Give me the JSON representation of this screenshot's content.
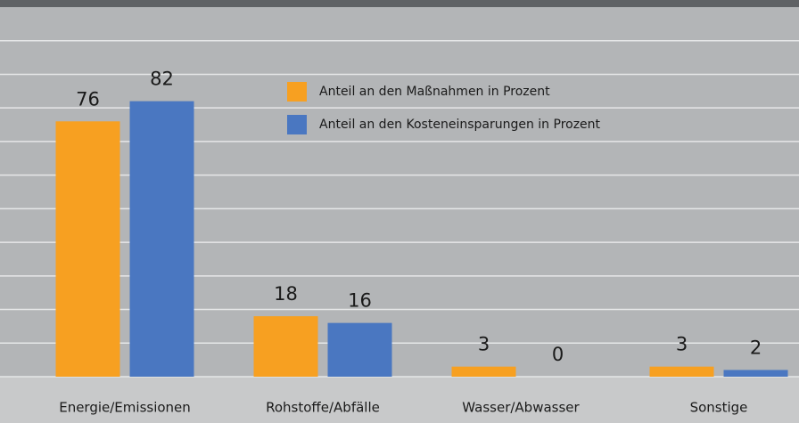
{
  "chart_data": {
    "type": "bar",
    "categories": [
      "Energie/Emissionen",
      "Rohstoffe/Abfälle",
      "Wasser/Abwasser",
      "Sonstige"
    ],
    "series": [
      {
        "name": "Anteil an den Maßnahmen in Prozent",
        "color": "#f7a021",
        "values": [
          76,
          18,
          3,
          3
        ]
      },
      {
        "name": "Anteil an den Kosteneinsparungen in Prozent",
        "color": "#4a77c1",
        "values": [
          82,
          16,
          0,
          2
        ]
      }
    ],
    "ylim": [
      0,
      110
    ],
    "yticks": [
      0,
      10,
      20,
      30,
      40,
      50,
      60,
      70,
      80,
      90,
      100
    ],
    "grid": true
  }
}
